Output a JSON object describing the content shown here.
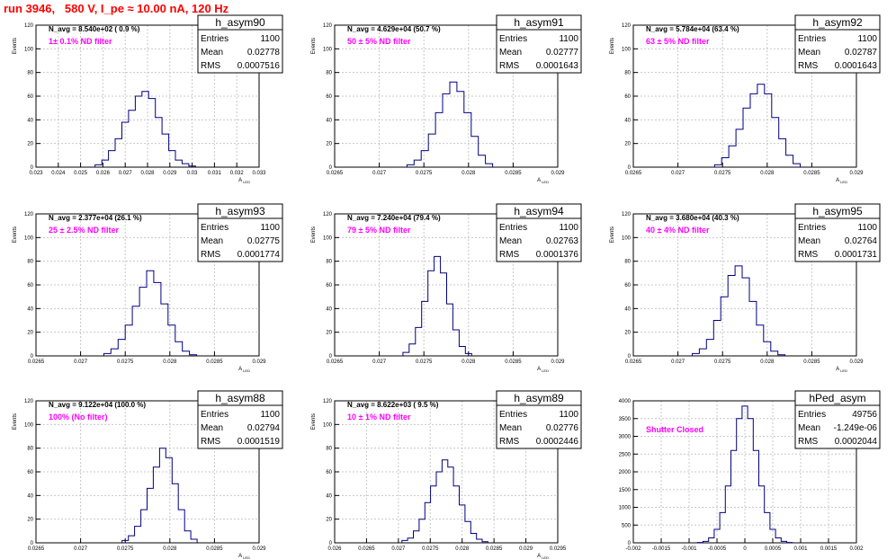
{
  "header": {
    "title": "run 3946,   580 V, I_pe ≈ 10.00 nA, 120 Hz"
  },
  "chart_data": [
    {
      "type": "histogram",
      "name": "h_asym90",
      "stats": {
        "entries_label": "Entries",
        "entries": "1100",
        "mean_label": "Mean",
        "mean": "0.02778",
        "rms_label": "RMS",
        "rms": "0.0007516"
      },
      "n_avg": "N_avg = 8.540e+02 ( 0.9 %)",
      "filter": "1± 0.1% ND filter",
      "ylabel": "Events",
      "xlabel": "A",
      "xlabel_sub": "LED",
      "xlim": [
        0.023,
        0.033
      ],
      "ylim": [
        0,
        120
      ],
      "xticks": [
        "0.023",
        "0.024",
        "0.025",
        "0.026",
        "0.027",
        "0.028",
        "0.029",
        "0.03",
        "0.031",
        "0.032",
        "0.033"
      ],
      "yticks": [
        "0",
        "20",
        "40",
        "60",
        "80",
        "100",
        "120"
      ],
      "x": [
        0.0258,
        0.0261,
        0.0264,
        0.0267,
        0.027,
        0.0273,
        0.0276,
        0.0279,
        0.0282,
        0.0285,
        0.0288,
        0.0291,
        0.0294,
        0.0297,
        0.03
      ],
      "values": [
        2,
        6,
        14,
        24,
        38,
        48,
        60,
        64,
        58,
        42,
        28,
        14,
        6,
        3,
        1
      ]
    },
    {
      "type": "histogram",
      "name": "h_asym91",
      "stats": {
        "entries_label": "Entries",
        "entries": "1100",
        "mean_label": "Mean",
        "mean": "0.02777",
        "rms_label": "RMS",
        "rms": "0.0001643"
      },
      "n_avg": "N_avg = 4.629e+04 (50.7 %)",
      "filter": "50 ± 5% ND filter",
      "ylabel": "Events",
      "xlabel": "A",
      "xlabel_sub": "LED",
      "xlim": [
        0.0265,
        0.029
      ],
      "ylim": [
        0,
        120
      ],
      "xticks": [
        "0.0265",
        "0.027",
        "0.0275",
        "0.028",
        "0.0285",
        "0.029"
      ],
      "yticks": [
        "0",
        "20",
        "40",
        "60",
        "80",
        "100",
        "120"
      ],
      "x": [
        0.02735,
        0.02743,
        0.02751,
        0.02759,
        0.02767,
        0.02775,
        0.02783,
        0.02791,
        0.02799,
        0.02807,
        0.02815,
        0.02823
      ],
      "values": [
        2,
        6,
        14,
        28,
        46,
        62,
        72,
        64,
        46,
        26,
        10,
        3
      ]
    },
    {
      "type": "histogram",
      "name": "h_asym92",
      "stats": {
        "entries_label": "Entries",
        "entries": "1100",
        "mean_label": "Mean",
        "mean": "0.02787",
        "rms_label": "RMS",
        "rms": "0.0001643"
      },
      "n_avg": "N_avg = 5.784e+04 (63.4 %)",
      "filter": "63 ± 5% ND filter",
      "ylabel": "Events",
      "xlabel": "A",
      "xlabel_sub": "LED",
      "xlim": [
        0.0265,
        0.029
      ],
      "ylim": [
        0,
        120
      ],
      "xticks": [
        "0.0265",
        "0.027",
        "0.0275",
        "0.028",
        "0.0285",
        "0.029"
      ],
      "yticks": [
        "0",
        "20",
        "40",
        "60",
        "80",
        "100",
        "120"
      ],
      "x": [
        0.02745,
        0.02753,
        0.02761,
        0.02769,
        0.02777,
        0.02785,
        0.02793,
        0.02801,
        0.02809,
        0.02817,
        0.02825,
        0.02833
      ],
      "values": [
        2,
        8,
        18,
        32,
        50,
        62,
        70,
        62,
        42,
        24,
        10,
        3
      ]
    },
    {
      "type": "histogram",
      "name": "h_asym93",
      "stats": {
        "entries_label": "Entries",
        "entries": "1100",
        "mean_label": "Mean",
        "mean": "0.02775",
        "rms_label": "RMS",
        "rms": "0.0001774"
      },
      "n_avg": "N_avg = 2.377e+04 (26.1 %)",
      "filter": "25 ± 2.5% ND filter",
      "ylabel": "Events",
      "xlabel": "A",
      "xlabel_sub": "LED",
      "xlim": [
        0.0265,
        0.029
      ],
      "ylim": [
        0,
        120
      ],
      "xticks": [
        "0.0265",
        "0.027",
        "0.0275",
        "0.028",
        "0.0285",
        "0.029"
      ],
      "yticks": [
        "0",
        "20",
        "40",
        "60",
        "80",
        "100",
        "120"
      ],
      "x": [
        0.0273,
        0.02738,
        0.02746,
        0.02754,
        0.02762,
        0.0277,
        0.02778,
        0.02786,
        0.02794,
        0.02802,
        0.0281,
        0.02818,
        0.02826
      ],
      "values": [
        2,
        6,
        14,
        26,
        42,
        58,
        72,
        62,
        44,
        26,
        12,
        4,
        1
      ]
    },
    {
      "type": "histogram",
      "name": "h_asym94",
      "stats": {
        "entries_label": "Entries",
        "entries": "1100",
        "mean_label": "Mean",
        "mean": "0.02763",
        "rms_label": "RMS",
        "rms": "0.0001376"
      },
      "n_avg": "N_avg = 7.240e+04 (79.4 %)",
      "filter": "79 ± 5% ND filter",
      "ylabel": "Events",
      "xlabel": "A",
      "xlabel_sub": "LED",
      "xlim": [
        0.0265,
        0.029
      ],
      "ylim": [
        0,
        120
      ],
      "xticks": [
        "0.0265",
        "0.027",
        "0.0275",
        "0.028",
        "0.0285",
        "0.029"
      ],
      "yticks": [
        "0",
        "20",
        "40",
        "60",
        "80",
        "100",
        "120"
      ],
      "x": [
        0.0273,
        0.02737,
        0.02744,
        0.02751,
        0.02758,
        0.02765,
        0.02772,
        0.02779,
        0.02786,
        0.02793,
        0.028
      ],
      "values": [
        3,
        10,
        24,
        46,
        72,
        84,
        70,
        44,
        22,
        8,
        2
      ]
    },
    {
      "type": "histogram",
      "name": "h_asym95",
      "stats": {
        "entries_label": "Entries",
        "entries": "1100",
        "mean_label": "Mean",
        "mean": "0.02764",
        "rms_label": "RMS",
        "rms": "0.0001731"
      },
      "n_avg": "N_avg = 3.680e+04 (40.3 %)",
      "filter": "40 ± 4% ND filter",
      "ylabel": "Events",
      "xlabel": "A",
      "xlabel_sub": "LED",
      "xlim": [
        0.0265,
        0.029
      ],
      "ylim": [
        0,
        120
      ],
      "xticks": [
        "0.0265",
        "0.027",
        "0.0275",
        "0.028",
        "0.0285",
        "0.029"
      ],
      "yticks": [
        "0",
        "20",
        "40",
        "60",
        "80",
        "100",
        "120"
      ],
      "x": [
        0.0272,
        0.02728,
        0.02736,
        0.02744,
        0.02752,
        0.0276,
        0.02768,
        0.02776,
        0.02784,
        0.02792,
        0.028,
        0.02808,
        0.02816
      ],
      "values": [
        2,
        6,
        14,
        30,
        50,
        68,
        76,
        66,
        46,
        26,
        12,
        4,
        1
      ]
    },
    {
      "type": "histogram",
      "name": "h_asym88",
      "stats": {
        "entries_label": "Entries",
        "entries": "1100",
        "mean_label": "Mean",
        "mean": "0.02794",
        "rms_label": "RMS",
        "rms": "0.0001519"
      },
      "n_avg": "N_avg = 9.122e+04 (100.0 %)",
      "filter": "100% (No filter)",
      "ylabel": "Events",
      "xlabel": "A",
      "xlabel_sub": "LED",
      "xlim": [
        0.0265,
        0.029
      ],
      "ylim": [
        0,
        120
      ],
      "xticks": [
        "0.0265",
        "0.027",
        "0.0275",
        "0.028",
        "0.0285",
        "0.029"
      ],
      "yticks": [
        "0",
        "20",
        "40",
        "60",
        "80",
        "100",
        "120"
      ],
      "x": [
        0.0275,
        0.02757,
        0.02764,
        0.02771,
        0.02778,
        0.02785,
        0.02792,
        0.02799,
        0.02806,
        0.02813,
        0.0282,
        0.02827
      ],
      "values": [
        2,
        6,
        14,
        28,
        46,
        64,
        80,
        72,
        50,
        28,
        10,
        3
      ]
    },
    {
      "type": "histogram",
      "name": "h_asym89",
      "stats": {
        "entries_label": "Entries",
        "entries": "1100",
        "mean_label": "Mean",
        "mean": "0.02776",
        "rms_label": "RMS",
        "rms": "0.0002446"
      },
      "n_avg": "N_avg = 8.622e+03 ( 9.5 %)",
      "filter": "10 ± 1% ND filter",
      "ylabel": "Events",
      "xlabel": "A",
      "xlabel_sub": "LED",
      "xlim": [
        0.026,
        0.0295
      ],
      "ylim": [
        0,
        120
      ],
      "xticks": [
        "0.026",
        "0.0265",
        "0.027",
        "0.0275",
        "0.028",
        "0.0285",
        "0.029",
        "0.0295"
      ],
      "yticks": [
        "0",
        "20",
        "40",
        "60",
        "80",
        "100",
        "120"
      ],
      "x": [
        0.0271,
        0.02719,
        0.02728,
        0.02737,
        0.02746,
        0.02755,
        0.02764,
        0.02773,
        0.02782,
        0.02791,
        0.028,
        0.02809,
        0.02818,
        0.02827,
        0.02836
      ],
      "values": [
        2,
        4,
        10,
        20,
        34,
        48,
        60,
        70,
        64,
        48,
        32,
        18,
        8,
        3,
        1
      ]
    },
    {
      "type": "histogram",
      "name": "hPed_asym",
      "stats": {
        "entries_label": "Entries",
        "entries": "49756",
        "mean_label": "Mean",
        "mean": "-1.249e-06",
        "rms_label": "RMS",
        "rms": "0.0002044"
      },
      "n_avg": "",
      "filter": "Shutter Closed",
      "ylabel": "",
      "xlabel": "",
      "xlabel_sub": "",
      "xlim": [
        -0.002,
        0.002
      ],
      "ylim": [
        0,
        4000
      ],
      "xticks": [
        "-0.002",
        "-0.0015",
        "-0.001",
        "-0.0005",
        "0",
        "0.0005",
        "0.001",
        "0.0015",
        "0.002"
      ],
      "yticks": [
        "0",
        "500",
        "1000",
        "1500",
        "2000",
        "2500",
        "3000",
        "3500",
        "4000"
      ],
      "x": [
        -0.0008,
        -0.0007,
        -0.0006,
        -0.0005,
        -0.0004,
        -0.0003,
        -0.0002,
        -0.0001,
        0,
        0.0001,
        0.0002,
        0.0003,
        0.0004,
        0.0005,
        0.0006,
        0.0007,
        0.0008
      ],
      "values": [
        10,
        40,
        140,
        380,
        850,
        1600,
        2600,
        3500,
        3850,
        3500,
        2600,
        1600,
        850,
        380,
        140,
        40,
        10
      ]
    }
  ]
}
